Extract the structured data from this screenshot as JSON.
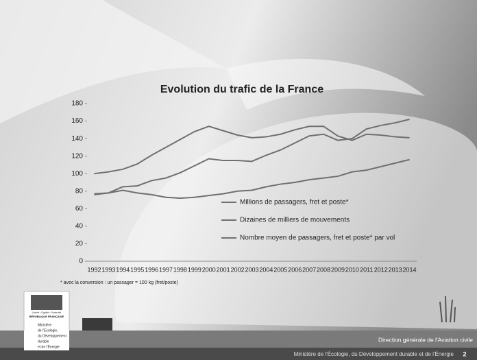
{
  "chart_data": {
    "type": "line",
    "title": "Evolution du trafic de la France",
    "categories": [
      "1992",
      "1993",
      "1994",
      "1995",
      "1996",
      "1997",
      "1998",
      "1999",
      "2000",
      "2001",
      "2002",
      "2003",
      "2004",
      "2005",
      "2006",
      "2007",
      "2008",
      "2009",
      "2010",
      "2011",
      "2012",
      "2013",
      "2014"
    ],
    "series": [
      {
        "name": "Millions de passagers, fret et poste*",
        "color": "#6f6f6f",
        "values": [
          77,
          78,
          85,
          86,
          92,
          95,
          101,
          109,
          117,
          115,
          115,
          114,
          121,
          127,
          135,
          143,
          145,
          138,
          140,
          151,
          155,
          158,
          162
        ]
      },
      {
        "name": "Dizaines de milliers de mouvements",
        "color": "#6f6f6f",
        "values": [
          100,
          102,
          105,
          111,
          121,
          130,
          139,
          148,
          154,
          149,
          144,
          141,
          142,
          145,
          150,
          154,
          154,
          143,
          138,
          145,
          144,
          142,
          141
        ]
      },
      {
        "name": "Nombre moyen de passagers, fret et poste* par vol",
        "color": "#6f6f6f",
        "values": [
          76,
          78,
          81,
          78,
          76,
          73,
          72,
          73,
          75,
          77,
          80,
          81,
          85,
          88,
          90,
          93,
          95,
          97,
          102,
          104,
          108,
          112,
          116
        ]
      }
    ],
    "ylim": [
      0,
      180
    ],
    "yticks": [
      0,
      20,
      40,
      60,
      80,
      100,
      120,
      140,
      160,
      180
    ],
    "grid": false
  },
  "footnote": "* avec la conversion : un passager = 100 kg (fret/poste)",
  "logo_republique": {
    "motto": "Liberté • Égalité • Fraternité",
    "name": "RÉPUBLIQUE FRANÇAISE",
    "ministry": [
      "Ministère",
      "de l'Écologie,",
      "du Développement",
      "durable",
      "et de l'Énergie"
    ]
  },
  "logo_dgac": "dgac",
  "footer": {
    "direction": "Direction générale de l'Aviation civile",
    "ministry": "Ministère de l'Écologie, du Développement durable et de l'Énergie",
    "page": "2"
  }
}
